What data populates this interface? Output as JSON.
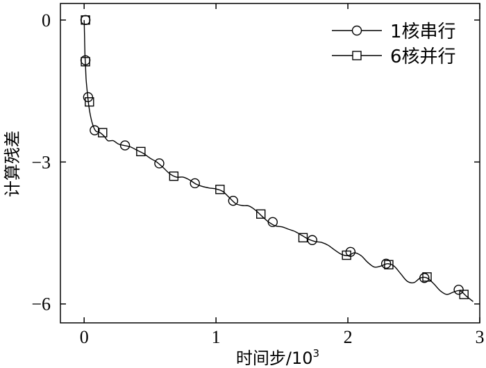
{
  "chart_data": {
    "type": "line",
    "xlabel": "时间步/10",
    "xlabel_sup": "3",
    "ylabel": "计算残差",
    "xlim": [
      -0.18,
      3.0
    ],
    "ylim": [
      -6.4,
      0.35
    ],
    "x_ticks": [
      0,
      1,
      2,
      3
    ],
    "x_tick_labels": [
      "0",
      "1",
      "2",
      "3"
    ],
    "y_ticks": [
      0,
      -3,
      -6
    ],
    "y_tick_labels": [
      "0",
      "−3",
      "−6"
    ],
    "grid": false,
    "legend_position": "top-right",
    "line_points": [
      [
        0.0,
        0.0
      ],
      [
        0.003,
        -0.35
      ],
      [
        0.006,
        -0.7
      ],
      [
        0.01,
        -0.95
      ],
      [
        0.015,
        -1.25
      ],
      [
        0.025,
        -1.55
      ],
      [
        0.035,
        -1.8
      ],
      [
        0.05,
        -2.05
      ],
      [
        0.07,
        -2.25
      ],
      [
        0.09,
        -2.35
      ],
      [
        0.12,
        -2.38
      ],
      [
        0.15,
        -2.45
      ],
      [
        0.18,
        -2.55
      ],
      [
        0.22,
        -2.55
      ],
      [
        0.26,
        -2.62
      ],
      [
        0.3,
        -2.65
      ],
      [
        0.35,
        -2.68
      ],
      [
        0.4,
        -2.75
      ],
      [
        0.45,
        -2.82
      ],
      [
        0.5,
        -2.92
      ],
      [
        0.55,
        -3.0
      ],
      [
        0.6,
        -3.12
      ],
      [
        0.65,
        -3.25
      ],
      [
        0.7,
        -3.32
      ],
      [
        0.75,
        -3.32
      ],
      [
        0.8,
        -3.38
      ],
      [
        0.85,
        -3.47
      ],
      [
        0.9,
        -3.52
      ],
      [
        0.95,
        -3.55
      ],
      [
        1.0,
        -3.57
      ],
      [
        1.05,
        -3.62
      ],
      [
        1.1,
        -3.75
      ],
      [
        1.15,
        -3.88
      ],
      [
        1.2,
        -3.92
      ],
      [
        1.25,
        -3.93
      ],
      [
        1.3,
        -4.02
      ],
      [
        1.35,
        -4.15
      ],
      [
        1.4,
        -4.27
      ],
      [
        1.45,
        -4.35
      ],
      [
        1.5,
        -4.37
      ],
      [
        1.55,
        -4.42
      ],
      [
        1.6,
        -4.47
      ],
      [
        1.65,
        -4.55
      ],
      [
        1.7,
        -4.63
      ],
      [
        1.75,
        -4.68
      ],
      [
        1.8,
        -4.7
      ],
      [
        1.85,
        -4.76
      ],
      [
        1.9,
        -4.86
      ],
      [
        1.95,
        -4.95
      ],
      [
        2.0,
        -4.98
      ],
      [
        2.05,
        -4.92
      ],
      [
        2.1,
        -4.98
      ],
      [
        2.15,
        -5.12
      ],
      [
        2.2,
        -5.22
      ],
      [
        2.25,
        -5.2
      ],
      [
        2.3,
        -5.15
      ],
      [
        2.35,
        -5.2
      ],
      [
        2.4,
        -5.36
      ],
      [
        2.45,
        -5.52
      ],
      [
        2.5,
        -5.55
      ],
      [
        2.55,
        -5.45
      ],
      [
        2.6,
        -5.45
      ],
      [
        2.65,
        -5.57
      ],
      [
        2.7,
        -5.72
      ],
      [
        2.75,
        -5.8
      ],
      [
        2.8,
        -5.75
      ],
      [
        2.85,
        -5.72
      ],
      [
        2.9,
        -5.84
      ],
      [
        2.95,
        -5.95
      ]
    ],
    "series": [
      {
        "name": "1核串行",
        "marker": "circle",
        "points": [
          [
            0.01,
            0.0
          ],
          [
            0.01,
            -0.85
          ],
          [
            0.03,
            -1.63
          ],
          [
            0.08,
            -2.33
          ],
          [
            0.31,
            -2.65
          ],
          [
            0.57,
            -3.03
          ],
          [
            0.84,
            -3.45
          ],
          [
            1.13,
            -3.82
          ],
          [
            1.43,
            -4.27
          ],
          [
            1.73,
            -4.65
          ],
          [
            2.02,
            -4.9
          ],
          [
            2.29,
            -5.15
          ],
          [
            2.58,
            -5.45
          ],
          [
            2.84,
            -5.7
          ]
        ]
      },
      {
        "name": "6核并行",
        "marker": "square",
        "points": [
          [
            0.01,
            0.0
          ],
          [
            0.01,
            -0.88
          ],
          [
            0.04,
            -1.73
          ],
          [
            0.14,
            -2.38
          ],
          [
            0.43,
            -2.78
          ],
          [
            0.68,
            -3.3
          ],
          [
            1.03,
            -3.58
          ],
          [
            1.34,
            -4.1
          ],
          [
            1.66,
            -4.6
          ],
          [
            1.99,
            -4.97
          ],
          [
            2.31,
            -5.17
          ],
          [
            2.6,
            -5.43
          ],
          [
            2.88,
            -5.8
          ]
        ]
      }
    ]
  }
}
